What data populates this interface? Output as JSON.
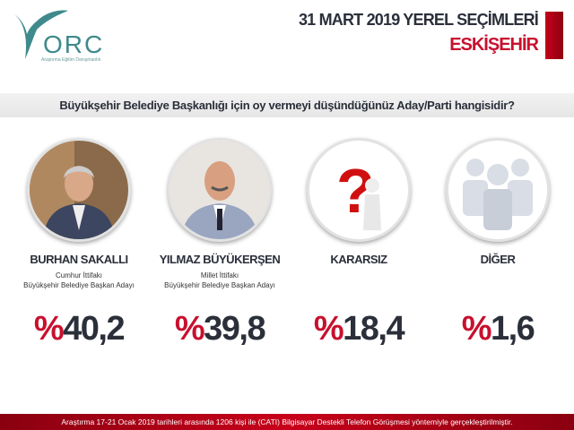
{
  "logo": {
    "text": "ORC",
    "subtitle": "Araştırma Eğitim Danışmanlık",
    "color": "#3f8a8c"
  },
  "header": {
    "title": "31 MART 2019 YEREL SEÇİMLERİ",
    "subtitle": "ESKİŞEHİR"
  },
  "question": "Büyükşehir Belediye Başkanlığı için  oy vermeyi düşündüğünüz Aday/Parti hangisidir?",
  "candidates": [
    {
      "name": "BURHAN SAKALLI",
      "alliance": "Cumhur İttifakı",
      "role": "Büyükşehir Belediye Başkan Adayı",
      "percent_symbol": "%",
      "value": "40,2",
      "image": "candidate-photo"
    },
    {
      "name": "YILMAZ BÜYÜKERŞEN",
      "alliance": "Millet İttifakı",
      "role": "Büyükşehir Belediye Başkan Adayı",
      "percent_symbol": "%",
      "value": "39,8",
      "image": "candidate-photo"
    },
    {
      "name": "KARARSIZ",
      "percent_symbol": "%",
      "value": "18,4",
      "image": "question-mark-icon"
    },
    {
      "name": "DİĞER",
      "percent_symbol": "%",
      "value": "1,6",
      "image": "people-group-icon"
    }
  ],
  "colors": {
    "accent": "#c8102e",
    "text": "#2b2f3a"
  },
  "footer": "Araştırma 17-21 Ocak 2019 tarihleri arasında 1206 kişi ile (CATI) Bilgisayar Destekli Telefon Görüşmesi yöntemiyle gerçekleştirilmiştir."
}
